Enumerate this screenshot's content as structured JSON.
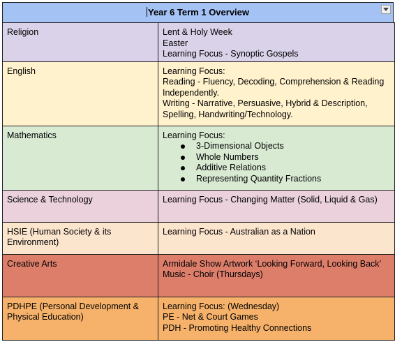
{
  "header": {
    "title": "Year 6 Term 1 Overview",
    "bg_color": "#a4c2f4"
  },
  "rows": [
    {
      "subject": "Religion",
      "color": "#d9d2e9",
      "lines": [
        "Lent & Holy Week",
        "Easter",
        "Learning Focus - Synoptic Gospels"
      ]
    },
    {
      "subject": "English",
      "color": "#fff2cc",
      "lines": [
        "Learning Focus:",
        "Reading - Fluency, Decoding, Comprehension & Reading Independently.",
        "Writing - Narrative, Persuasive, Hybrid & Description, Spelling, Handwriting/Technology."
      ]
    },
    {
      "subject": "Mathematics",
      "color": "#d9ead3",
      "lines": [
        "Learning Focus:"
      ],
      "bullets": [
        "3-Dimensional Objects",
        "Whole Numbers",
        "Additive Relations",
        "Representing Quantity Fractions"
      ]
    },
    {
      "subject": "Science & Technology",
      "color": "#ead1dc",
      "lines": [
        "Learning Focus - Changing Matter (Solid, Liquid & Gas)"
      ]
    },
    {
      "subject": "HSIE (Human Society & its Environment)",
      "color": "#fce5cd",
      "lines": [
        "Learning Focus - Australian as a Nation"
      ]
    },
    {
      "subject": "Creative Arts",
      "color": "#dd7e6b",
      "lines": [
        "Armidale Show Artwork ‘Looking Forward, Looking Back’",
        "Music - Choir (Thursdays)"
      ]
    },
    {
      "subject": "PDHPE (Personal Development & Physical Education)",
      "color": "#f6b26b",
      "lines": [
        "Learning Focus: (Wednesday)",
        "PE - Net & Court Games",
        "PDH - Promoting Healthy Connections"
      ]
    }
  ]
}
